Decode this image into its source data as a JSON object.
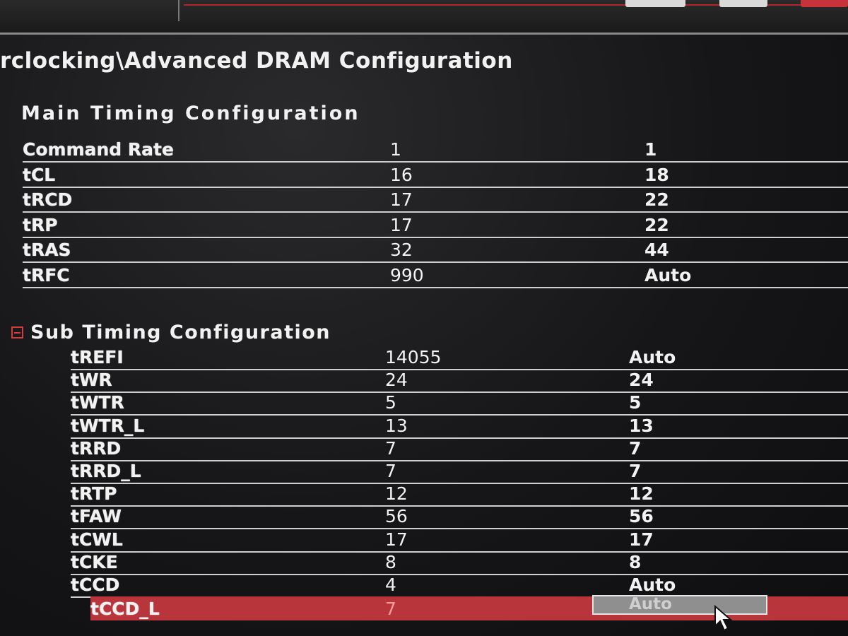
{
  "breadcrumb": "rclocking\\Advanced DRAM Configuration",
  "main_section": {
    "title": "Main  Timing  Configuration",
    "rows": [
      {
        "name": "Command Rate",
        "current": "1",
        "setting": "1"
      },
      {
        "name": "tCL",
        "current": "16",
        "setting": "18"
      },
      {
        "name": "tRCD",
        "current": "17",
        "setting": "22"
      },
      {
        "name": "tRP",
        "current": "17",
        "setting": "22"
      },
      {
        "name": "tRAS",
        "current": "32",
        "setting": "44"
      },
      {
        "name": "tRFC",
        "current": "990",
        "setting": "Auto"
      }
    ]
  },
  "sub_section": {
    "title": "Sub Timing Configuration",
    "expanded": true,
    "rows": [
      {
        "name": "tREFI",
        "current": "14055",
        "setting": "Auto"
      },
      {
        "name": "tWR",
        "current": "24",
        "setting": "24"
      },
      {
        "name": "tWTR",
        "current": "5",
        "setting": "5"
      },
      {
        "name": "tWTR_L",
        "current": "13",
        "setting": "13"
      },
      {
        "name": "tRRD",
        "current": "7",
        "setting": "7"
      },
      {
        "name": "tRRD_L",
        "current": "7",
        "setting": "7"
      },
      {
        "name": "tRTP",
        "current": "12",
        "setting": "12"
      },
      {
        "name": "tFAW",
        "current": "56",
        "setting": "56"
      },
      {
        "name": "tCWL",
        "current": "17",
        "setting": "17"
      },
      {
        "name": "tCKE",
        "current": "8",
        "setting": "8"
      },
      {
        "name": "tCCD",
        "current": "4",
        "setting": "Auto"
      },
      {
        "name": "tCCD_L",
        "current": "7",
        "setting": "Auto",
        "selected": true
      }
    ]
  },
  "colors": {
    "accent": "#b9353c",
    "background": "#161618",
    "text": "#f2f2f2"
  },
  "icons": {
    "collapse": "minus-square-icon",
    "pointer": "mouse-cursor-icon"
  }
}
